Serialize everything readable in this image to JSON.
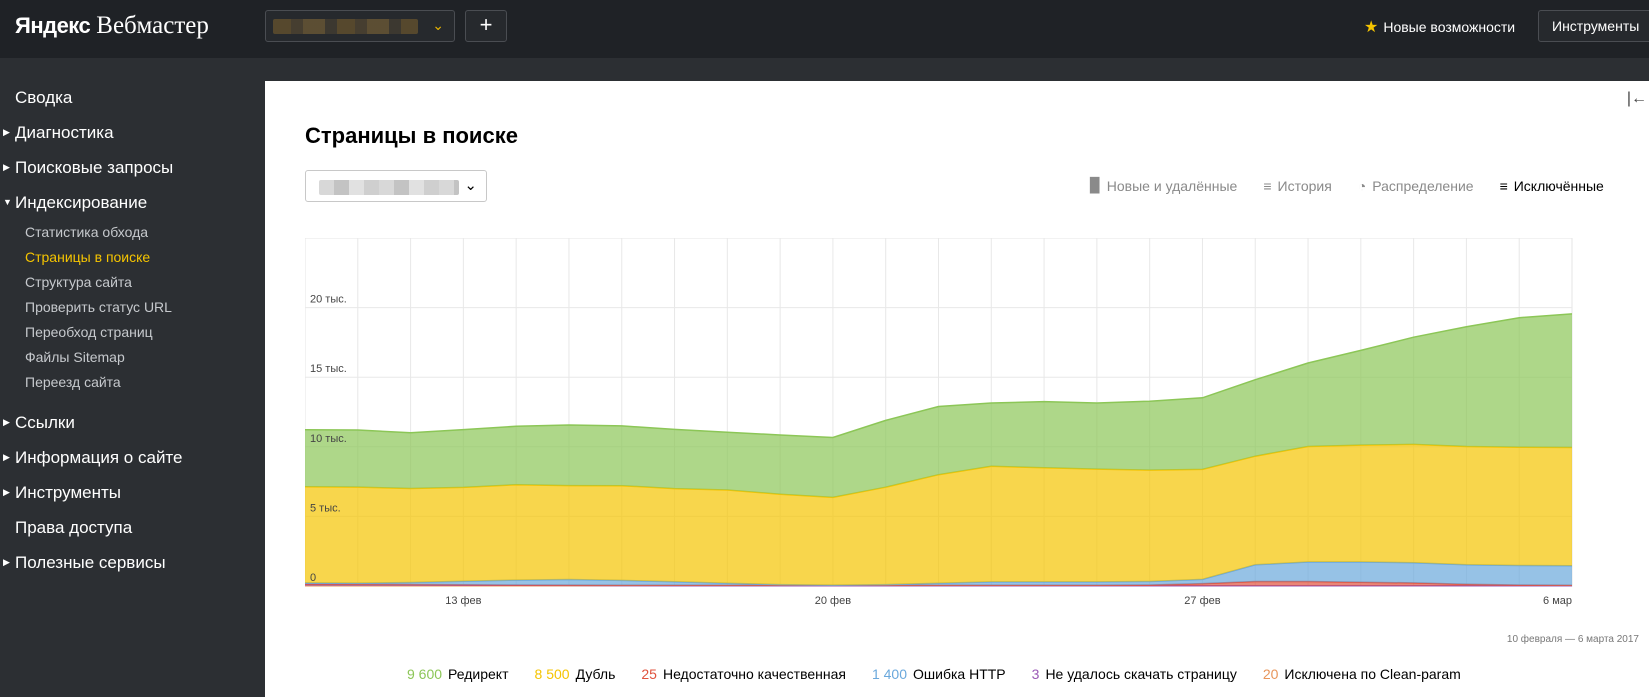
{
  "header": {
    "logo_brand": "Яндекс",
    "logo_product": "Вебмастер",
    "add_label": "+",
    "features_label": "Новые возможности",
    "tools_label": "Инструменты"
  },
  "sidebar": {
    "items": [
      {
        "label": "Сводка",
        "has_arrow": false,
        "expanded": false
      },
      {
        "label": "Диагностика",
        "has_arrow": true,
        "expanded": false
      },
      {
        "label": "Поисковые запросы",
        "has_arrow": true,
        "expanded": false
      },
      {
        "label": "Индексирование",
        "has_arrow": true,
        "expanded": true,
        "children": [
          {
            "label": "Статистика обхода",
            "active": false
          },
          {
            "label": "Страницы в поиске",
            "active": true
          },
          {
            "label": "Структура сайта",
            "active": false
          },
          {
            "label": "Проверить статус URL",
            "active": false
          },
          {
            "label": "Переобход страниц",
            "active": false
          },
          {
            "label": "Файлы Sitemap",
            "active": false
          },
          {
            "label": "Переезд сайта",
            "active": false
          }
        ]
      },
      {
        "label": "Ссылки",
        "has_arrow": true,
        "expanded": false
      },
      {
        "label": "Информация о сайте",
        "has_arrow": true,
        "expanded": false
      },
      {
        "label": "Инструменты",
        "has_arrow": true,
        "expanded": false
      },
      {
        "label": "Права доступа",
        "has_arrow": false,
        "expanded": false
      },
      {
        "label": "Полезные сервисы",
        "has_arrow": true,
        "expanded": false
      }
    ]
  },
  "main": {
    "title": "Страницы в поиске",
    "tabs": [
      {
        "label": "Новые и удалённые",
        "icon": "bars-icon",
        "active": false
      },
      {
        "label": "История",
        "icon": "history-icon",
        "active": false
      },
      {
        "label": "Распределение",
        "icon": "pie-icon",
        "active": false
      },
      {
        "label": "Исключённые",
        "icon": "excluded-icon",
        "active": true
      }
    ],
    "period_range": "10 февраля — 6 марта 2017",
    "legend": [
      {
        "value": "9 600",
        "label": "Редирект",
        "color": "#8cc657"
      },
      {
        "value": "8 500",
        "label": "Дубль",
        "color": "#f5c400"
      },
      {
        "value": "25",
        "label": "Недостаточно качественная",
        "color": "#e0523d"
      },
      {
        "value": "1 400",
        "label": "Ошибка HTTP",
        "color": "#6aa8dc"
      },
      {
        "value": "3",
        "label": "Не удалось скачать страницу",
        "color": "#9b59b6"
      },
      {
        "value": "20",
        "label": "Исключена по Clean-param",
        "color": "#e8955a"
      }
    ]
  },
  "chart_data": {
    "type": "area",
    "stacked": true,
    "x": [
      "10 фев",
      "11 фев",
      "12 фев",
      "13 фев",
      "14 фев",
      "15 фев",
      "16 фев",
      "17 фев",
      "18 фев",
      "19 фев",
      "20 фев",
      "21 фев",
      "22 фев",
      "23 фев",
      "24 фев",
      "25 фев",
      "26 фев",
      "27 фев",
      "28 фев",
      "1 мар",
      "2 мар",
      "3 мар",
      "4 мар",
      "5 мар",
      "6 мар"
    ],
    "x_ticks": [
      {
        "index": 3,
        "label": "13 фев"
      },
      {
        "index": 10,
        "label": "20 фев"
      },
      {
        "index": 17,
        "label": "27 фев"
      },
      {
        "index": 24,
        "label": "6 мар"
      }
    ],
    "y_ticks": [
      {
        "value": 0,
        "label": "0"
      },
      {
        "value": 5000,
        "label": "5 тыс."
      },
      {
        "value": 10000,
        "label": "10 тыс."
      },
      {
        "value": 15000,
        "label": "15 тыс."
      },
      {
        "value": 20000,
        "label": "20 тыс."
      }
    ],
    "ylim": [
      0,
      25000
    ],
    "grid": true,
    "legend_position": "bottom",
    "series": [
      {
        "name": "Исключена по Clean-param",
        "color": "#e8955a",
        "values": [
          20,
          20,
          20,
          20,
          20,
          20,
          20,
          20,
          20,
          20,
          20,
          20,
          20,
          20,
          20,
          20,
          20,
          20,
          20,
          20,
          20,
          20,
          20,
          20,
          20
        ]
      },
      {
        "name": "Не удалось скачать страницу",
        "color": "#9b59b6",
        "values": [
          100,
          80,
          60,
          40,
          30,
          20,
          10,
          5,
          3,
          3,
          3,
          3,
          3,
          3,
          3,
          3,
          3,
          3,
          3,
          3,
          3,
          3,
          3,
          3,
          3
        ]
      },
      {
        "name": "Недостаточно качественная",
        "color": "#e0523d",
        "values": [
          25,
          25,
          25,
          25,
          25,
          25,
          25,
          25,
          25,
          25,
          25,
          25,
          25,
          25,
          25,
          25,
          50,
          150,
          300,
          300,
          250,
          200,
          100,
          50,
          25
        ]
      },
      {
        "name": "Ошибка HTTP",
        "color": "#6aa8dc",
        "values": [
          80,
          80,
          150,
          250,
          350,
          400,
          350,
          250,
          150,
          50,
          20,
          50,
          150,
          250,
          250,
          250,
          250,
          300,
          1200,
          1400,
          1450,
          1450,
          1400,
          1400,
          1400
        ]
      },
      {
        "name": "Дубль",
        "color": "#f5c400",
        "values": [
          6900,
          6900,
          6750,
          6750,
          6850,
          6750,
          6800,
          6700,
          6700,
          6500,
          6300,
          7000,
          7800,
          8300,
          8200,
          8100,
          8000,
          7900,
          7800,
          8300,
          8400,
          8500,
          8500,
          8500,
          8500
        ]
      },
      {
        "name": "Редирект",
        "color": "#8cc657",
        "values": [
          4100,
          4100,
          4000,
          4150,
          4200,
          4350,
          4300,
          4250,
          4150,
          4250,
          4300,
          4800,
          4900,
          4550,
          4750,
          4750,
          4950,
          5150,
          5500,
          6000,
          6800,
          7700,
          8600,
          9300,
          9600
        ]
      }
    ]
  }
}
